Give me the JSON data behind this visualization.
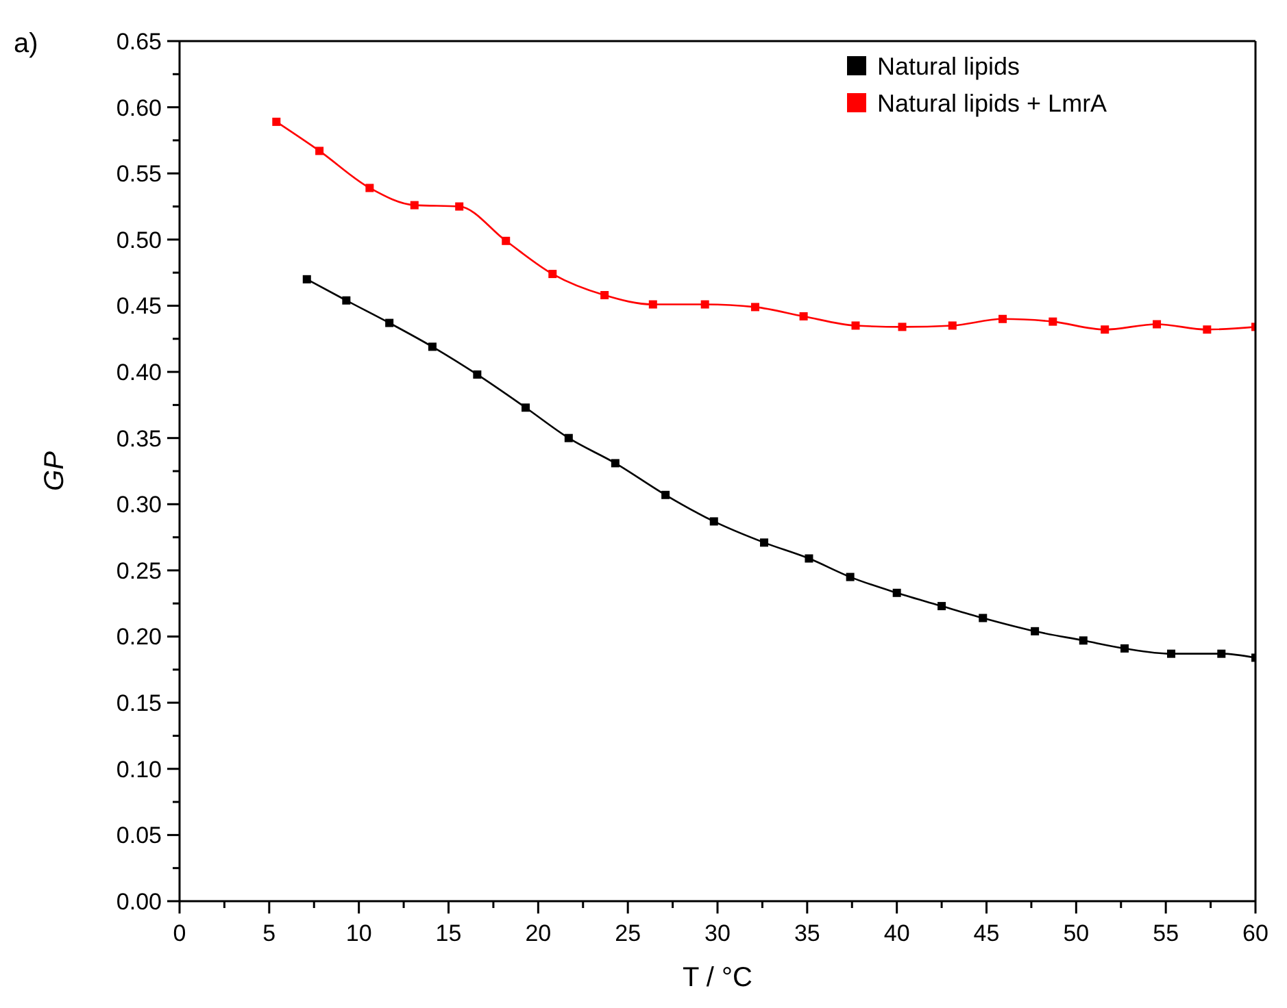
{
  "chart_data": {
    "type": "line",
    "xlabel": "T / °C",
    "ylabel": "GP",
    "annotations": [
      "a)"
    ],
    "xlim": [
      0,
      60
    ],
    "ylim": [
      0,
      0.65
    ],
    "xticks": [
      0,
      {
        "value": 2.5,
        "label": null
      },
      5,
      {
        "value": 7.5,
        "label": null
      },
      10,
      {
        "value": 12.5,
        "label": null
      },
      15,
      {
        "value": 17.5,
        "label": null
      },
      20,
      {
        "value": 22.5,
        "label": null
      },
      25,
      {
        "value": 27.5,
        "label": null
      },
      30,
      {
        "value": 32.5,
        "label": null
      },
      35,
      {
        "value": 37.5,
        "label": null
      },
      40,
      {
        "value": 42.5,
        "label": null
      },
      45,
      {
        "value": 47.5,
        "label": null
      },
      50,
      {
        "value": 52.5,
        "label": null
      },
      55,
      {
        "value": 57.5,
        "label": null
      },
      60
    ],
    "yticks": [
      {
        "value": 0,
        "label": "0.00"
      },
      {
        "value": 0.025,
        "label": null
      },
      {
        "value": 0.05,
        "label": "0.05"
      },
      {
        "value": 0.075,
        "label": null
      },
      {
        "value": 0.1,
        "label": "0.10"
      },
      {
        "value": 0.125,
        "label": null
      },
      {
        "value": 0.15,
        "label": "0.15"
      },
      {
        "value": 0.175,
        "label": null
      },
      {
        "value": 0.2,
        "label": "0.20"
      },
      {
        "value": 0.225,
        "label": null
      },
      {
        "value": 0.25,
        "label": "0.25"
      },
      {
        "value": 0.275,
        "label": null
      },
      {
        "value": 0.3,
        "label": "0.30"
      },
      {
        "value": 0.325,
        "label": null
      },
      {
        "value": 0.35,
        "label": "0.35"
      },
      {
        "value": 0.375,
        "label": null
      },
      {
        "value": 0.4,
        "label": "0.40"
      },
      {
        "value": 0.425,
        "label": null
      },
      {
        "value": 0.45,
        "label": "0.45"
      },
      {
        "value": 0.475,
        "label": null
      },
      {
        "value": 0.5,
        "label": "0.50"
      },
      {
        "value": 0.525,
        "label": null
      },
      {
        "value": 0.55,
        "label": "0.55"
      },
      {
        "value": 0.575,
        "label": null
      },
      {
        "value": 0.6,
        "label": "0.60"
      },
      {
        "value": 0.625,
        "label": null
      },
      {
        "value": 0.65,
        "label": "0.65"
      }
    ],
    "grid": false,
    "legend": "top right",
    "marker": "square",
    "line_style": "solid",
    "series": [
      {
        "name": "Natural lipids",
        "color": "#000000",
        "x": [
          7.1,
          9.3,
          11.7,
          14.1,
          16.6,
          19.3,
          21.7,
          24.3,
          27.1,
          29.8,
          32.6,
          35.1,
          37.4,
          40.0,
          42.5,
          44.8,
          47.7,
          50.4,
          52.7,
          55.3,
          58.1,
          60
        ],
        "values": [
          0.47,
          0.454,
          0.437,
          0.419,
          0.398,
          0.373,
          0.35,
          0.331,
          0.307,
          0.287,
          0.271,
          0.259,
          0.245,
          0.233,
          0.223,
          0.214,
          0.204,
          0.197,
          0.191,
          0.187,
          0.187,
          0.184
        ]
      },
      {
        "name": "Natural lipids + LmrA",
        "color": "#ff0000",
        "x": [
          5.4,
          7.8,
          10.6,
          13.1,
          15.6,
          18.2,
          20.8,
          23.7,
          26.4,
          29.3,
          32.1,
          34.8,
          37.7,
          40.3,
          43.1,
          45.9,
          48.7,
          51.6,
          54.5,
          57.3,
          60
        ],
        "values": [
          0.589,
          0.567,
          0.539,
          0.526,
          0.525,
          0.499,
          0.474,
          0.458,
          0.451,
          0.451,
          0.449,
          0.442,
          0.435,
          0.434,
          0.435,
          0.44,
          0.438,
          0.432,
          0.436,
          0.432,
          0.434
        ]
      }
    ]
  }
}
